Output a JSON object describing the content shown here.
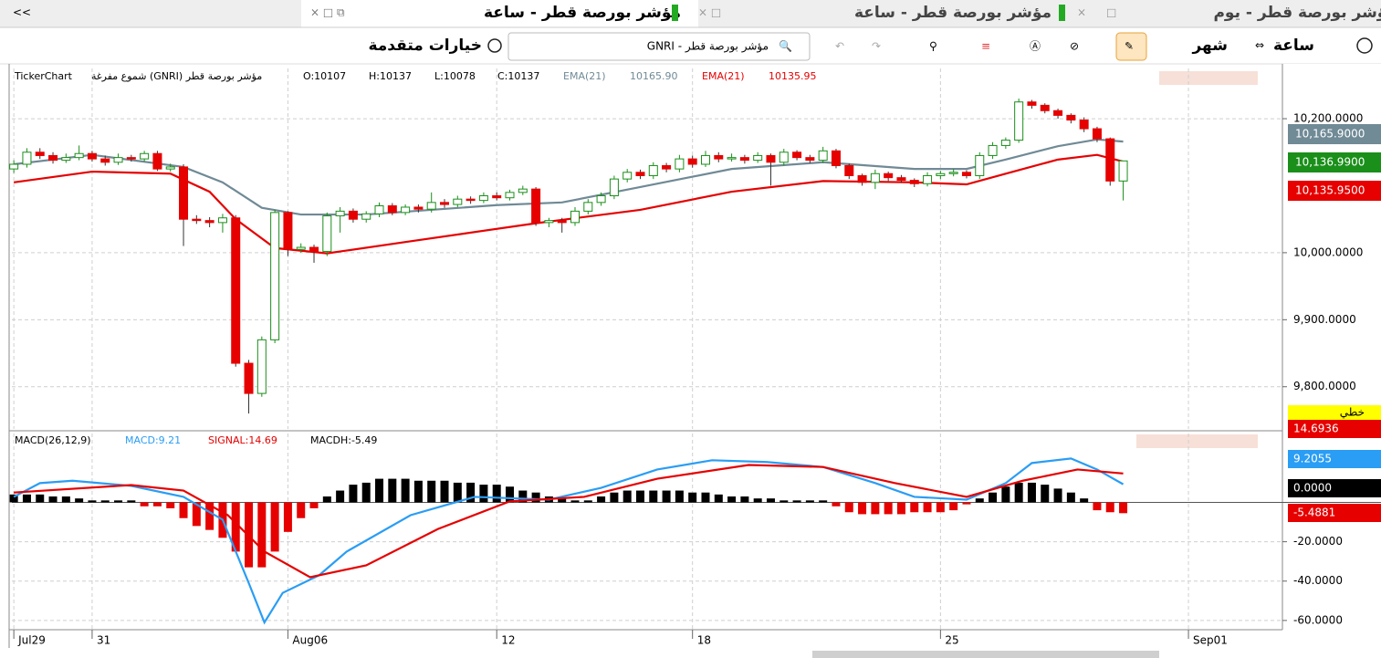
{
  "tabs": {
    "collapse": "<<",
    "tab_day": "مؤشر بورصة قطر - يوم",
    "tab_hour_1": "مؤشر بورصة قطر - ساعة",
    "tab_hour_2": "مؤشر بورصة قطر - ساعة"
  },
  "toolbar": {
    "interval": "ساعة",
    "period": "شهر",
    "advanced": "خيارات متقدمة",
    "search": "GNRI - مؤشر بورصة قطر"
  },
  "chart_data": [
    {
      "type": "candlestick",
      "info": {
        "brand": "TickerChart",
        "symbol": "شموع مفرغة (GNRI) مؤشر بورصة قطر",
        "open": "O:10107",
        "high": "H:10137",
        "low": "L:10078",
        "close": "C:10137"
      },
      "xlim": [
        -0.15,
        97.2
      ],
      "ylim": [
        9737,
        10275
      ],
      "yticks": [
        {
          "value": 9800,
          "label": "9,800.0000"
        },
        {
          "value": 9900,
          "label": "9,900.0000"
        },
        {
          "value": 10000,
          "label": "10,000.0000"
        },
        {
          "value": 10200,
          "label": "10,200.0000"
        }
      ],
      "grid": true,
      "up_color": "#1a8f1a",
      "down_color": "#e60000",
      "open": [
        10125,
        10132,
        10150,
        10145,
        10138,
        10142,
        10148,
        10140,
        10135,
        10142,
        10140,
        10148,
        10125,
        10128,
        10050,
        10048,
        10045,
        10052,
        9835,
        9790,
        9870,
        10060,
        10005,
        10008,
        10002,
        10055,
        10062,
        10050,
        10058,
        10070,
        10060,
        10068,
        10065,
        10075,
        10072,
        10080,
        10078,
        10085,
        10082,
        10090,
        10095,
        10045,
        10048,
        10045,
        10062,
        10075,
        10085,
        10110,
        10120,
        10115,
        10130,
        10125,
        10140,
        10132,
        10145,
        10140,
        10142,
        10138,
        10145,
        10135,
        10150,
        10142,
        10138,
        10152,
        10130,
        10115,
        10105,
        10118,
        10112,
        10108,
        10103,
        10115,
        10118,
        10120,
        10115,
        10145,
        10160,
        10168,
        10225,
        10220,
        10212,
        10205,
        10198,
        10185,
        10170,
        10107
      ],
      "high": [
        10138,
        10156,
        10156,
        10150,
        10148,
        10160,
        10152,
        10145,
        10148,
        10146,
        10152,
        10152,
        10133,
        10132,
        10056,
        10053,
        10058,
        10056,
        9840,
        9875,
        10064,
        10062,
        10014,
        10012,
        10060,
        10068,
        10066,
        10062,
        10075,
        10074,
        10072,
        10072,
        10090,
        10080,
        10085,
        10084,
        10090,
        10090,
        10094,
        10100,
        10098,
        10052,
        10052,
        10068,
        10080,
        10090,
        10115,
        10125,
        10124,
        10135,
        10134,
        10146,
        10145,
        10152,
        10150,
        10148,
        10146,
        10150,
        10148,
        10155,
        10153,
        10146,
        10158,
        10155,
        10133,
        10118,
        10124,
        10121,
        10116,
        10111,
        10120,
        10122,
        10125,
        10123,
        10150,
        10165,
        10172,
        10230,
        10228,
        10223,
        10215,
        10208,
        10202,
        10188,
        10172,
        10137
      ],
      "low": [
        10119,
        10127,
        10140,
        10133,
        10134,
        10138,
        10136,
        10130,
        10131,
        10136,
        10136,
        10122,
        10121,
        10010,
        10043,
        10038,
        10030,
        9830,
        9760,
        9785,
        9865,
        9995,
        10000,
        9985,
        9995,
        10030,
        10045,
        10045,
        10053,
        10056,
        10056,
        10060,
        10060,
        10067,
        10068,
        10073,
        10074,
        10078,
        10078,
        10086,
        10040,
        10038,
        10030,
        10040,
        10057,
        10070,
        10080,
        10105,
        10110,
        10110,
        10120,
        10120,
        10127,
        10128,
        10135,
        10136,
        10133,
        10134,
        10100,
        10130,
        10138,
        10134,
        10134,
        10126,
        10110,
        10100,
        10095,
        10107,
        10104,
        10098,
        10099,
        10110,
        10114,
        10111,
        10110,
        10140,
        10155,
        10164,
        10215,
        10208,
        10200,
        10193,
        10180,
        10165,
        10100,
        10078
      ],
      "close": [
        10132,
        10150,
        10145,
        10138,
        10142,
        10148,
        10140,
        10135,
        10142,
        10140,
        10148,
        10125,
        10128,
        10050,
        10048,
        10045,
        10052,
        9835,
        9790,
        9870,
        10060,
        10005,
        10008,
        10002,
        10055,
        10062,
        10050,
        10058,
        10070,
        10060,
        10068,
        10065,
        10075,
        10072,
        10080,
        10078,
        10085,
        10082,
        10090,
        10095,
        10045,
        10048,
        10045,
        10062,
        10075,
        10085,
        10110,
        10120,
        10115,
        10130,
        10125,
        10140,
        10132,
        10145,
        10140,
        10142,
        10138,
        10145,
        10135,
        10150,
        10142,
        10138,
        10152,
        10130,
        10115,
        10105,
        10118,
        10112,
        10108,
        10103,
        10115,
        10118,
        10120,
        10115,
        10145,
        10160,
        10168,
        10225,
        10220,
        10212,
        10205,
        10198,
        10185,
        10170,
        10107,
        10137
      ],
      "series": [
        {
          "name": "EMA(21)",
          "last": "10165.90",
          "color": "#708a96",
          "x": [
            0,
            6,
            13,
            16,
            19,
            22,
            27,
            37,
            42,
            48,
            55,
            62,
            69,
            73,
            76,
            80,
            83,
            85
          ],
          "values": [
            10132,
            10146,
            10128,
            10105,
            10067,
            10057,
            10057,
            10071,
            10075,
            10098,
            10125,
            10135,
            10125,
            10125,
            10139,
            10159,
            10169,
            10165.9
          ]
        },
        {
          "name": "EMA(21)",
          "last": "10135.95",
          "color": "#e60000",
          "x": [
            0,
            6,
            12,
            15,
            17,
            20,
            24,
            30,
            40,
            48,
            55,
            62,
            69,
            73,
            76,
            80,
            83,
            85
          ],
          "values": [
            10105,
            10121,
            10118,
            10091,
            10050,
            10007,
            9999,
            10016,
            10044,
            10064,
            10091,
            10107,
            10105,
            10102,
            10118,
            10139,
            10146,
            10135.95
          ]
        }
      ],
      "badges": [
        {
          "label": "10,165.9000",
          "color": "#708a96"
        },
        {
          "label": "10,136.9900",
          "color": "#1a8f1a"
        },
        {
          "label": "10,135.9500",
          "color": "#e60000"
        }
      ],
      "style_badge": "خطي"
    },
    {
      "type": "macd",
      "info": {
        "name": "MACD(26,12,9)",
        "macd": "MACD:9.21",
        "signal": "SIGNAL:14.69",
        "hist": "MACDH:-5.49"
      },
      "xlim": [
        -0.15,
        97.2
      ],
      "ylim": [
        -64.7,
        35
      ],
      "xticks": [
        {
          "value": 0,
          "label": "Jul29"
        },
        {
          "value": 6,
          "label": "31"
        },
        {
          "value": 21,
          "label": "Aug06"
        },
        {
          "value": 37,
          "label": "12"
        },
        {
          "value": 52,
          "label": "18"
        },
        {
          "value": 71,
          "label": "25"
        },
        {
          "value": 90,
          "label": "Sep01"
        }
      ],
      "yticks": [
        {
          "value": -60,
          "label": "-60.0000"
        },
        {
          "value": -40,
          "label": "-40.0000"
        },
        {
          "value": -20,
          "label": "-20.0000"
        }
      ],
      "grid": true,
      "histogram": {
        "up_color": "#000000",
        "down_color": "#e60000",
        "values": [
          4,
          4,
          4,
          3,
          3,
          2,
          1,
          1,
          1,
          1,
          -2,
          -2,
          -3,
          -8,
          -12,
          -14,
          -18,
          -25,
          -33,
          -33,
          -25,
          -15,
          -8,
          -3,
          3,
          6,
          9,
          10,
          12,
          12,
          12,
          11,
          11,
          11,
          10,
          10,
          9,
          9,
          8,
          6,
          5,
          3,
          2,
          1,
          1,
          3,
          5,
          6,
          6,
          6,
          6,
          6,
          5,
          5,
          4,
          3,
          3,
          2,
          2,
          1,
          1,
          1,
          1,
          -2,
          -5,
          -6,
          -6,
          -6,
          -6,
          -5,
          -5,
          -5,
          -4,
          -1,
          2,
          5,
          8,
          10,
          10,
          9,
          7,
          5,
          2,
          -4,
          -5,
          -5.49
        ]
      },
      "series": [
        {
          "name": "MACD",
          "color": "#2a9df4",
          "x": [
            0,
            2,
            4.5,
            9,
            13,
            16,
            18,
            19.2,
            20.6,
            23.4,
            25.5,
            30.4,
            35.3,
            41,
            45,
            49.3,
            53.5,
            57.7,
            62,
            66,
            69,
            73,
            76,
            78,
            81,
            83,
            85
          ],
          "values": [
            2.8,
            9.8,
            11,
            8.4,
            2.8,
            -8.8,
            -41,
            -61,
            -46,
            -37,
            -25,
            -6.5,
            2.8,
            1.4,
            7.4,
            16.7,
            21.4,
            20.5,
            18,
            9.8,
            2.8,
            1.4,
            9.8,
            20,
            22.3,
            16.7,
            9.21
          ]
        },
        {
          "name": "SIGNAL",
          "color": "#e60000",
          "x": [
            0,
            9,
            13,
            16.4,
            19.2,
            22.7,
            27,
            32.5,
            38,
            43.7,
            49.3,
            56.3,
            62,
            67.5,
            73,
            77.3,
            81.5,
            85
          ],
          "values": [
            5,
            8.8,
            6,
            -6.5,
            -25,
            -38,
            -32,
            -13.5,
            0.5,
            2.8,
            12,
            19,
            18,
            9.8,
            2.8,
            11,
            16.7,
            14.69
          ]
        }
      ],
      "badges": [
        {
          "label": "14.6936",
          "color": "#e60000"
        },
        {
          "label": "9.2055",
          "color": "#2a9df4"
        },
        {
          "label": "0.0000",
          "color": "#000000"
        },
        {
          "label": "-5.4881",
          "color": "#e60000"
        }
      ]
    }
  ]
}
